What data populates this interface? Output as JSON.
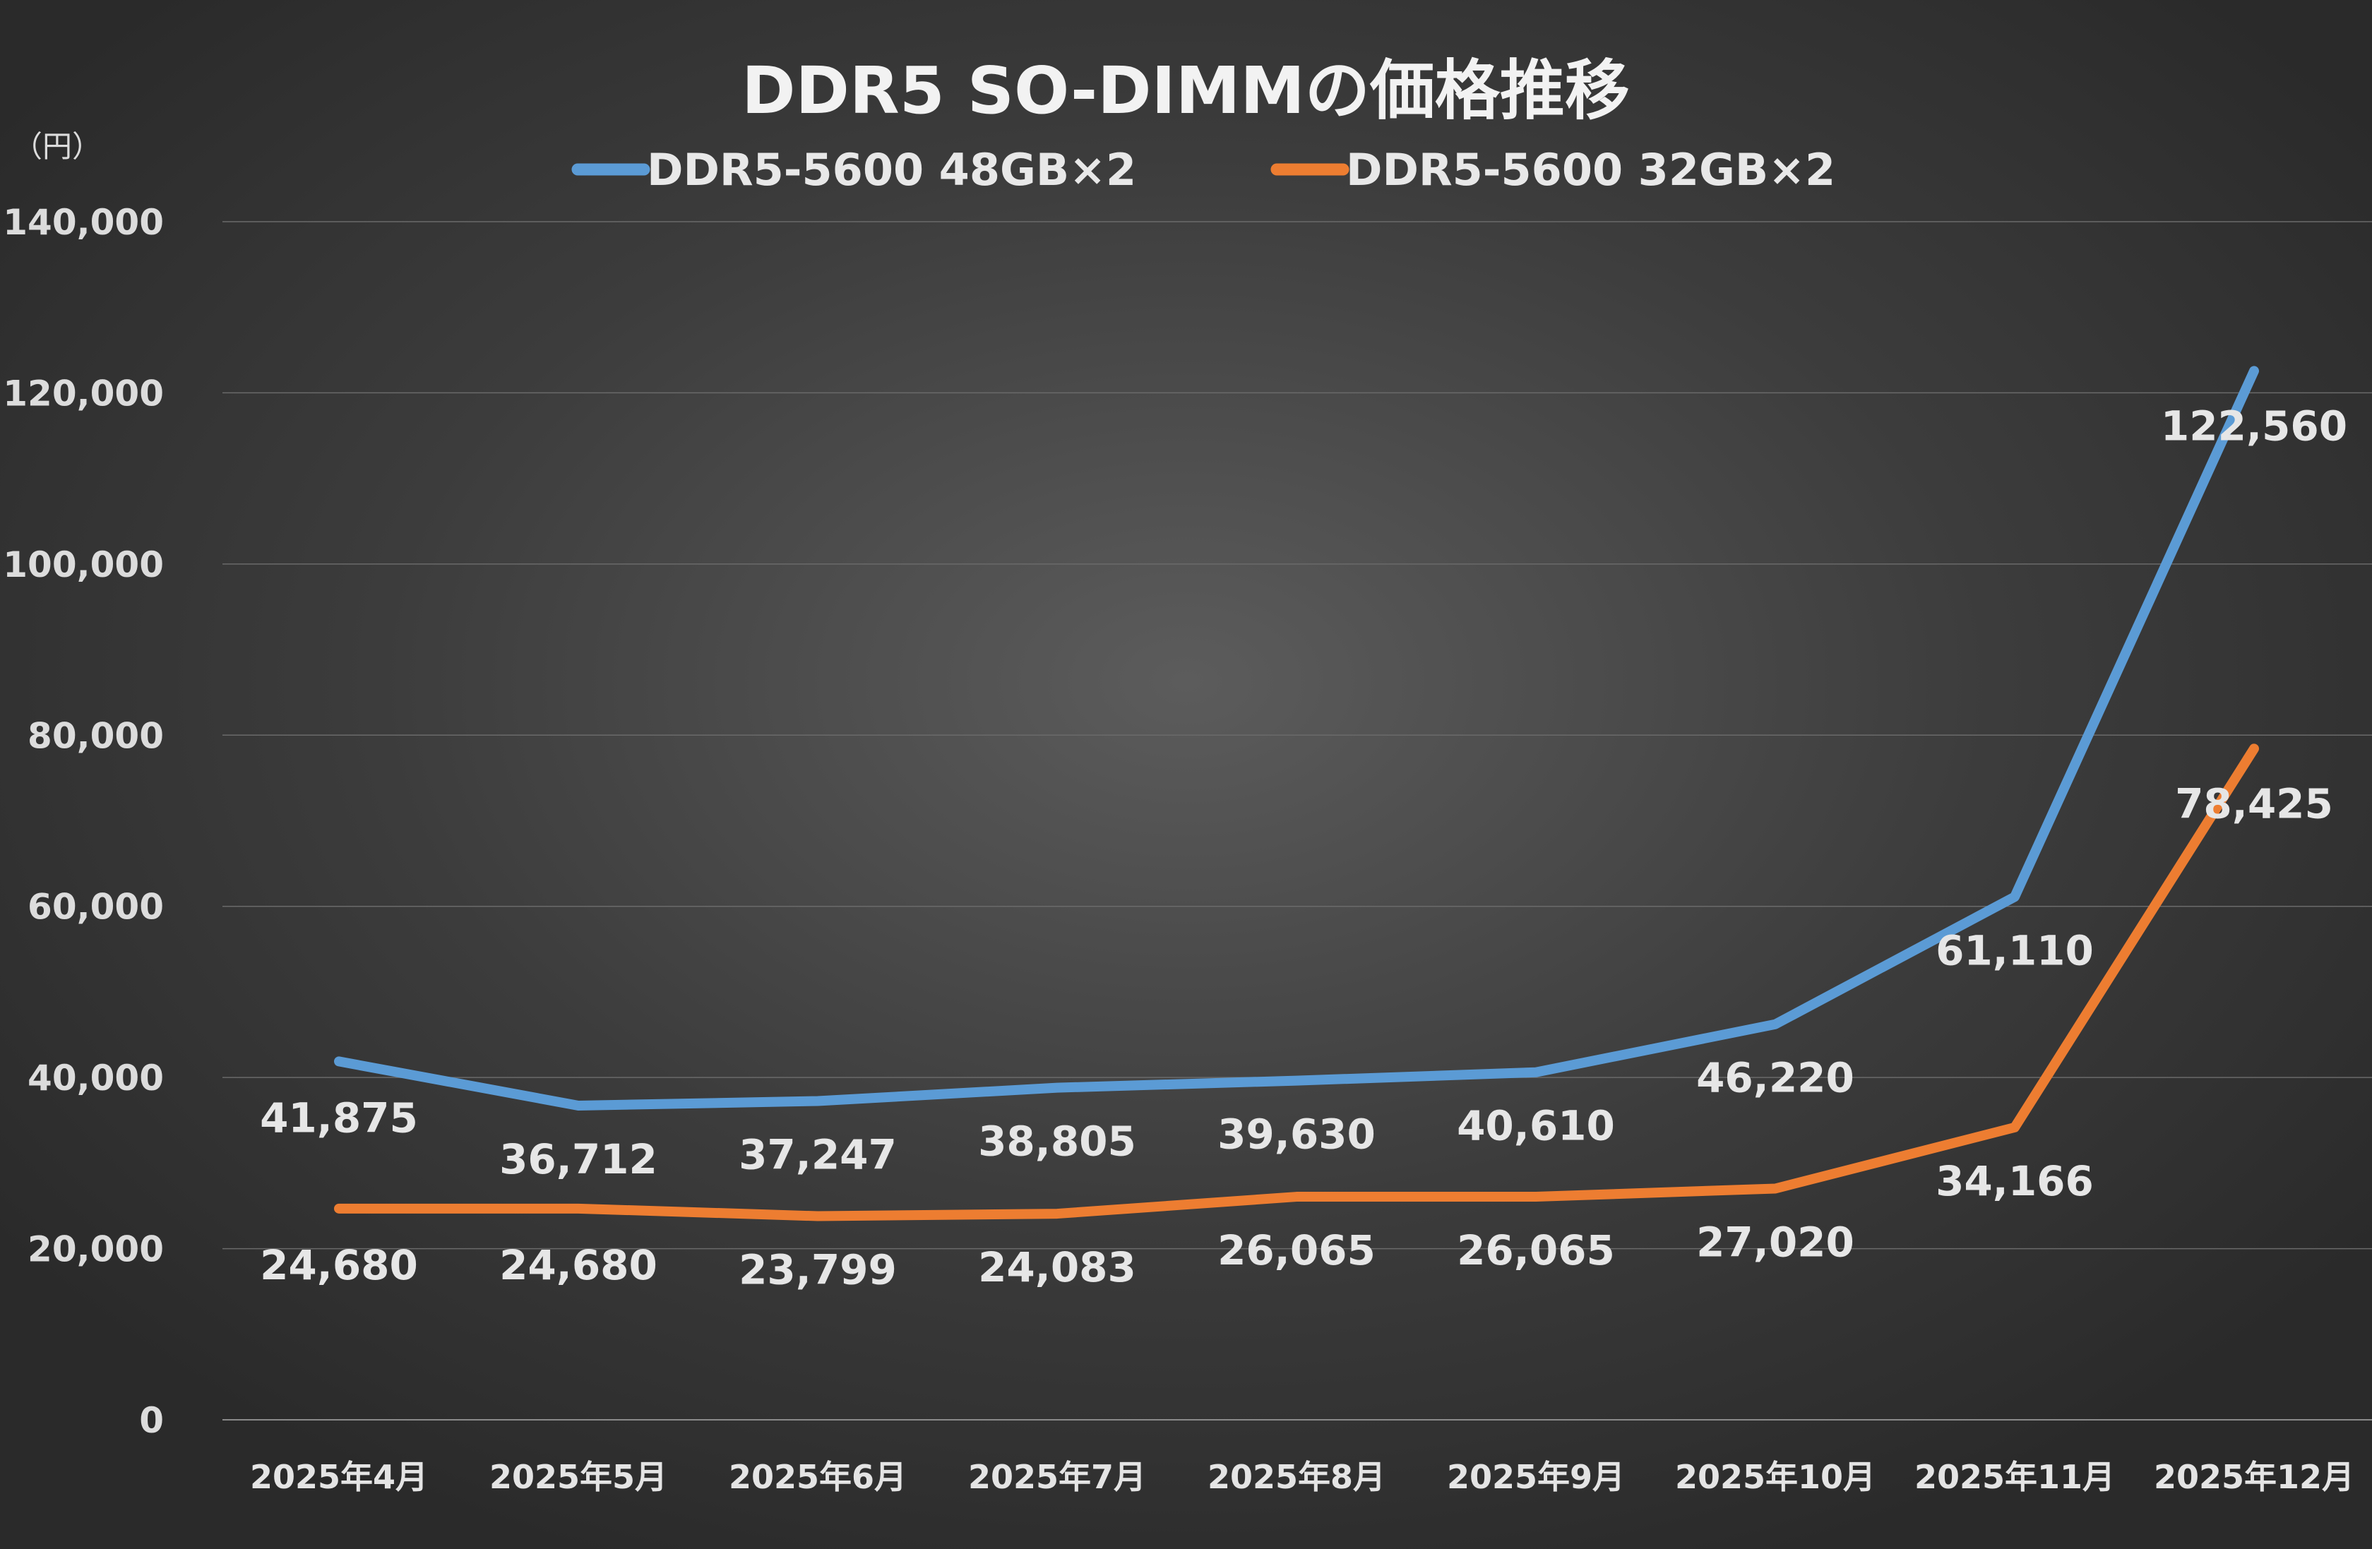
{
  "chart_data": {
    "type": "line",
    "title": "DDR5 SO-DIMMの価格推移",
    "ylabel": "（円）",
    "xlabel": "",
    "categories": [
      "2025年4月",
      "2025年5月",
      "2025年6月",
      "2025年7月",
      "2025年8月",
      "2025年9月",
      "2025年10月",
      "2025年11月",
      "2025年12月"
    ],
    "ylim": [
      0,
      140000
    ],
    "yticks": [
      "0",
      "20,000",
      "40,000",
      "60,000",
      "80,000",
      "100,000",
      "120,000",
      "140,000"
    ],
    "ytick_values": [
      0,
      20000,
      40000,
      60000,
      80000,
      100000,
      120000,
      140000
    ],
    "grid": true,
    "legend_position": "top-center",
    "series": [
      {
        "name": "DDR5-5600 48GB×2",
        "color": "#5b9bd5",
        "values": [
          41875,
          36712,
          37247,
          38805,
          39630,
          40610,
          46220,
          61110,
          122560
        ],
        "labels": [
          "41,875",
          "36,712",
          "37,247",
          "38,805",
          "39,630",
          "40,610",
          "46,220",
          "61,110",
          "122,560"
        ]
      },
      {
        "name": "DDR5-5600 32GB×2",
        "color": "#ed7d31",
        "values": [
          24680,
          24680,
          23799,
          24083,
          26065,
          26065,
          27020,
          34166,
          78425
        ],
        "labels": [
          "24,680",
          "24,680",
          "23,799",
          "24,083",
          "26,065",
          "26,065",
          "27,020",
          "34,166",
          "78,425"
        ]
      }
    ]
  }
}
